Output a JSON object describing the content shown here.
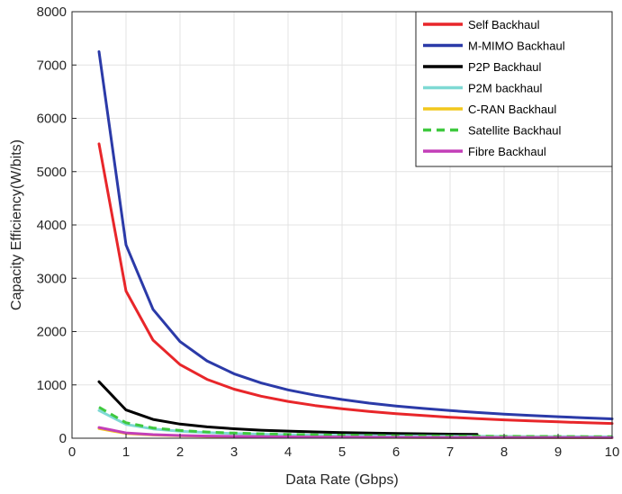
{
  "chart_data": {
    "type": "line",
    "title": "",
    "xlabel": "Data Rate (Gbps)",
    "ylabel": "Capacity Efficiency(W/bits)",
    "xlim": [
      0,
      10
    ],
    "ylim": [
      0,
      8000
    ],
    "xticks": [
      0,
      1,
      2,
      3,
      4,
      5,
      6,
      7,
      8,
      9,
      10
    ],
    "yticks": [
      0,
      1000,
      2000,
      3000,
      4000,
      5000,
      6000,
      7000,
      8000
    ],
    "grid": true,
    "legend_position": "top-right",
    "x": [
      0.5,
      1,
      1.5,
      2,
      2.5,
      3,
      3.5,
      4,
      4.5,
      5,
      5.5,
      6,
      6.5,
      7,
      7.5,
      8,
      8.5,
      9,
      9.5,
      10
    ],
    "series": [
      {
        "name": "Self Backhaul",
        "color": "#e8262a",
        "dash": false,
        "values": [
          5520,
          2760,
          1840,
          1380,
          1104,
          920,
          789,
          690,
          613,
          552,
          502,
          460,
          425,
          394,
          368,
          345,
          325,
          307,
          291,
          276
        ]
      },
      {
        "name": "M-MIMO Backhaul",
        "color": "#2b3aa8",
        "dash": false,
        "values": [
          7250,
          3625,
          2417,
          1813,
          1450,
          1208,
          1036,
          906,
          806,
          725,
          659,
          604,
          558,
          518,
          483,
          453,
          426,
          403,
          382,
          363
        ]
      },
      {
        "name": "P2P Backhaul",
        "color": "#000000",
        "dash": false,
        "values": [
          1060,
          530,
          353,
          265,
          212,
          177,
          151,
          133,
          118,
          106,
          96,
          88,
          82,
          76,
          71,
          null,
          null,
          null,
          null,
          null
        ]
      },
      {
        "name": "P2M backhaul",
        "color": "#7fd9d4",
        "dash": false,
        "values": [
          520,
          260,
          173,
          130,
          104,
          87,
          74,
          65,
          58,
          52,
          47,
          43,
          40,
          37,
          35,
          33,
          31,
          29,
          27,
          26
        ]
      },
      {
        "name": "C-RAN Backhaul",
        "color": "#f2c81d",
        "dash": false,
        "values": [
          180,
          90,
          60,
          45,
          36,
          30,
          26,
          23,
          20,
          18,
          16,
          15,
          14,
          13,
          12,
          11,
          11,
          10,
          9,
          9
        ]
      },
      {
        "name": "Satellite Backhaul",
        "color": "#3fc93f",
        "dash": true,
        "values": [
          580,
          290,
          193,
          145,
          116,
          97,
          83,
          73,
          64,
          58,
          53,
          48,
          45,
          41,
          39,
          36,
          34,
          32,
          31,
          29
        ]
      },
      {
        "name": "Fibre Backhaul",
        "color": "#c33fb8",
        "dash": false,
        "values": [
          200,
          100,
          67,
          50,
          40,
          33,
          29,
          25,
          22,
          20,
          18,
          17,
          15,
          14,
          13,
          13,
          12,
          11,
          11,
          10
        ]
      }
    ]
  }
}
